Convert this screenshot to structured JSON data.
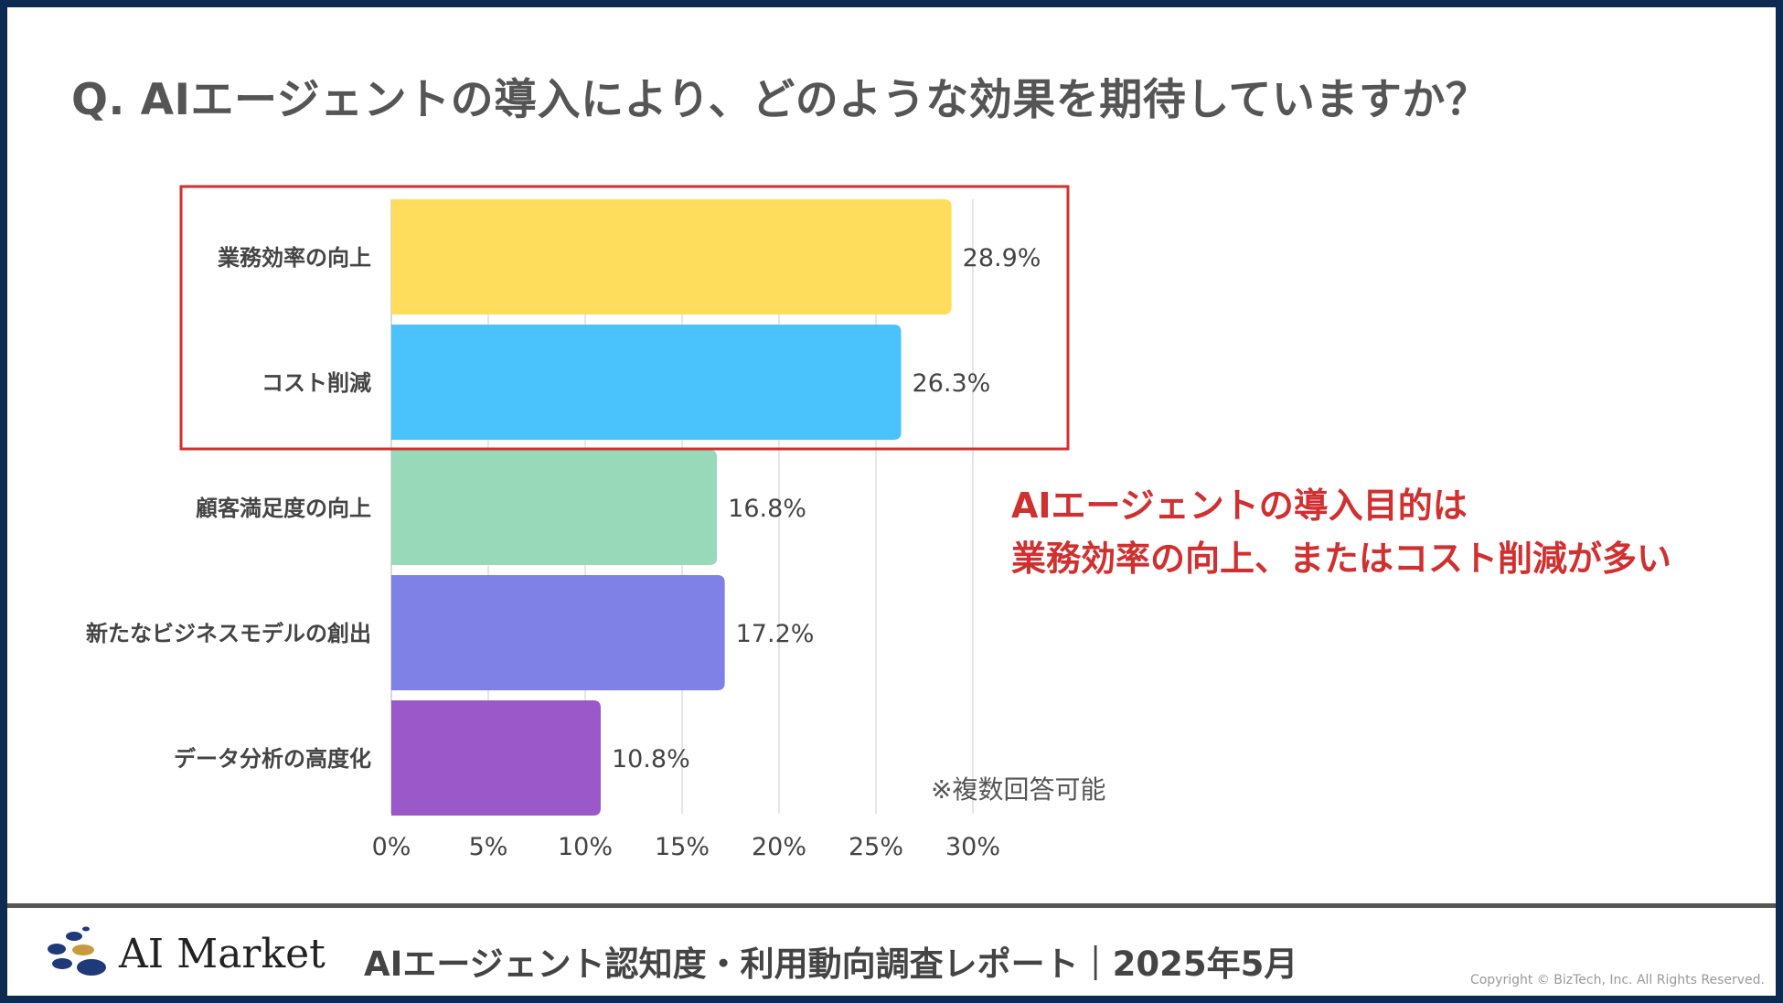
{
  "title": "Q. AIエージェントの導入により、どのような効果を期待していますか？",
  "chart_data": {
    "type": "bar",
    "orientation": "horizontal",
    "categories": [
      "業務効率の向上",
      "コスト削減",
      "顧客満足度の向上",
      "新たなビジネスモデルの創出",
      "データ分析の高度化"
    ],
    "values": [
      28.9,
      26.3,
      16.8,
      17.2,
      10.8
    ],
    "value_labels": [
      "28.9%",
      "26.3%",
      "16.8%",
      "17.2%",
      "10.8%"
    ],
    "colors": [
      "#ffdd5c",
      "#4ac3fd",
      "#98d9ba",
      "#7f81e6",
      "#9a58c8"
    ],
    "xlim": [
      0,
      30
    ],
    "xticks": [
      0,
      5,
      10,
      15,
      20,
      25,
      30
    ],
    "tick_labels": [
      "0%",
      "5%",
      "10%",
      "15%",
      "20%",
      "25%",
      "30%"
    ],
    "grid": true,
    "highlight_categories": [
      "業務効率の向上",
      "コスト削減"
    ],
    "highlight_color": "#d0302f"
  },
  "callout": {
    "line1": "AIエージェントの導入目的は",
    "line2": "業務効率の向上、またはコスト削減が多い"
  },
  "note": "※複数回答可能",
  "footer": {
    "logo_text": "AI Market",
    "report_title": "AIエージェント認知度・利用動向調査レポート｜2025年5月",
    "copyright": "Copyright © BizTech, Inc. All Rights Reserved."
  }
}
